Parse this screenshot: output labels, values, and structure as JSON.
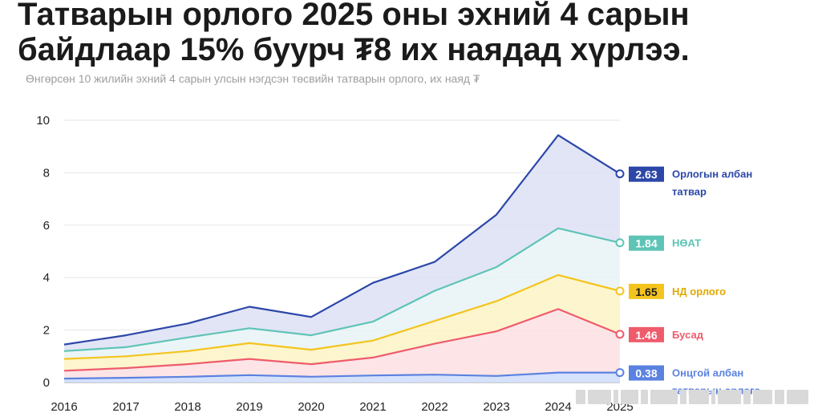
{
  "header": {
    "title_line1": "Татварын орлого 2025 оны эхний 4 сарын",
    "title_line2": "байдлаар 15% буурч ₮8 их наядад хүрлээ.",
    "subtitle": "Өнгөрсөн 10 жилийн эхний 4 сарын улсын нэгдсэн төсвийн татварын орлого, их наяд ₮"
  },
  "chart_data": {
    "type": "area",
    "stacked": true,
    "title": "Татварын орлого 2025 оны эхний 4 сарын байдлаар 15% буурч ₮8 их наядад хүрлээ.",
    "subtitle": "Өнгөрсөн 10 жилийн эхний 4 сарын улсын нэгдсэн төсвийн татварын орлого, их наяд ₮",
    "xlabel": "",
    "ylabel": "",
    "x": [
      "2016",
      "2017",
      "2018",
      "2019",
      "2020",
      "2021",
      "2022",
      "2023",
      "2024",
      "2025"
    ],
    "ylim": [
      0,
      10
    ],
    "yticks": [
      0,
      2,
      4,
      6,
      8,
      10
    ],
    "grid": true,
    "legend_position": "right, at line ends",
    "series": [
      {
        "name": "Онцгой албан татварын орлого",
        "label_lines": [
          "Онцгой албан",
          "татварын орлого"
        ],
        "badge": "0.38",
        "color": "#5b82e0",
        "fill": "#cfdcfb",
        "values": [
          0.15,
          0.18,
          0.22,
          0.28,
          0.22,
          0.27,
          0.3,
          0.25,
          0.38,
          0.38
        ]
      },
      {
        "name": "Бусад",
        "label_lines": [
          "Бусад"
        ],
        "badge": "1.46",
        "color": "#ee5c6c",
        "fill": "#fde0e3",
        "values": [
          0.3,
          0.37,
          0.48,
          0.62,
          0.48,
          0.68,
          1.18,
          1.7,
          2.42,
          1.46
        ]
      },
      {
        "name": "НД орлого",
        "label_lines": [
          "НД орлого"
        ],
        "badge": "1.65",
        "color": "#f4c41e",
        "fill": "#fdf3c4",
        "values": [
          0.45,
          0.45,
          0.5,
          0.6,
          0.55,
          0.65,
          0.87,
          1.15,
          1.3,
          1.65
        ]
      },
      {
        "name": "НӨАТ",
        "label_lines": [
          "НӨАТ"
        ],
        "badge": "1.84",
        "color": "#5ec4b6",
        "fill": "#e8f3f7",
        "values": [
          0.3,
          0.35,
          0.52,
          0.57,
          0.55,
          0.72,
          1.15,
          1.3,
          1.78,
          1.84
        ]
      },
      {
        "name": "Орлогын албан татвар",
        "label_lines": [
          "Орлогын албан",
          "татвар"
        ],
        "badge": "2.63",
        "color": "#2c47a8",
        "fill": "#dde1f4",
        "values": [
          0.25,
          0.45,
          0.53,
          0.82,
          0.7,
          1.48,
          1.1,
          2.0,
          3.55,
          2.63
        ]
      }
    ]
  }
}
